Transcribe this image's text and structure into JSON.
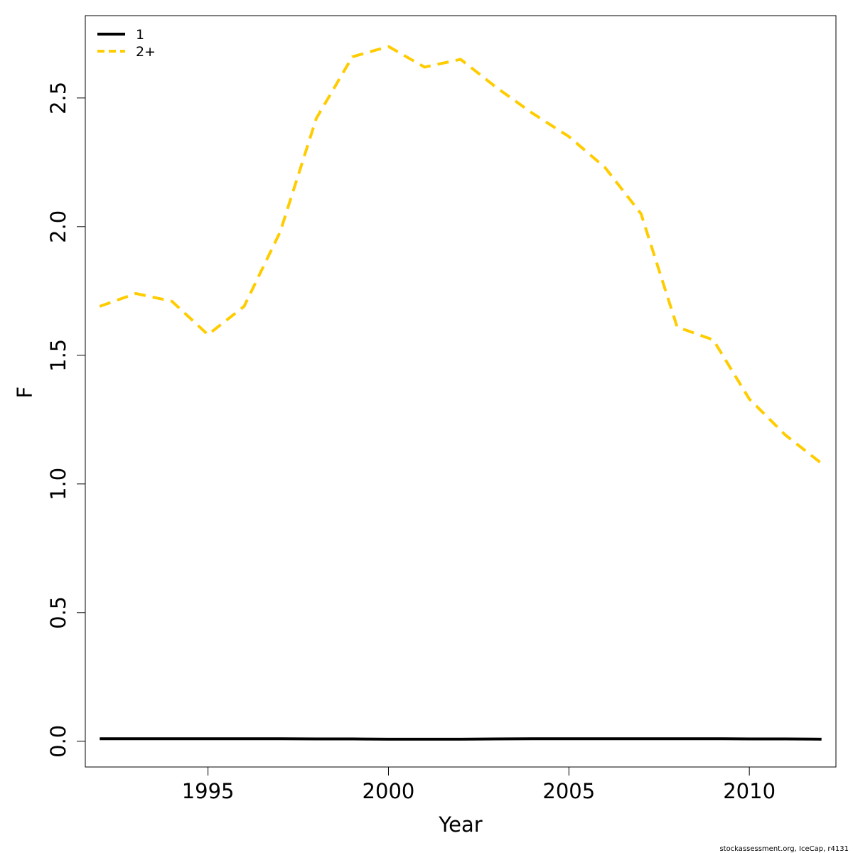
{
  "chart_data": {
    "type": "line",
    "title": "",
    "xlabel": "Year",
    "ylabel": "F",
    "xlim": [
      1991.6,
      2012.4
    ],
    "ylim": [
      -0.1,
      2.82
    ],
    "xticks": [
      1995,
      2000,
      2005,
      2010
    ],
    "yticks": [
      0.0,
      0.5,
      1.0,
      1.5,
      2.0,
      2.5
    ],
    "ytick_labels": [
      "0.0",
      "0.5",
      "1.0",
      "1.5",
      "2.0",
      "2.5"
    ],
    "grid": false,
    "legend_position": "top-left",
    "x": [
      1992,
      1993,
      1994,
      1995,
      1996,
      1997,
      1998,
      1999,
      2000,
      2001,
      2002,
      2003,
      2004,
      2005,
      2006,
      2007,
      2008,
      2009,
      2010,
      2011,
      2012
    ],
    "series": [
      {
        "name": "1",
        "color": "#000000",
        "dash": "solid",
        "values": [
          0.01,
          0.01,
          0.01,
          0.01,
          0.01,
          0.01,
          0.009,
          0.009,
          0.008,
          0.008,
          0.008,
          0.009,
          0.01,
          0.01,
          0.01,
          0.01,
          0.01,
          0.01,
          0.009,
          0.009,
          0.008
        ]
      },
      {
        "name": "2+",
        "color": "#FFCC00",
        "dash": "dashed",
        "values": [
          1.69,
          1.74,
          1.71,
          1.58,
          1.69,
          1.98,
          2.42,
          2.66,
          2.7,
          2.62,
          2.65,
          2.54,
          2.44,
          2.35,
          2.23,
          2.05,
          1.61,
          1.56,
          1.33,
          1.19,
          1.08
        ]
      }
    ]
  },
  "footer": {
    "credit": "stockassessment.org, IceCap, r4131"
  }
}
